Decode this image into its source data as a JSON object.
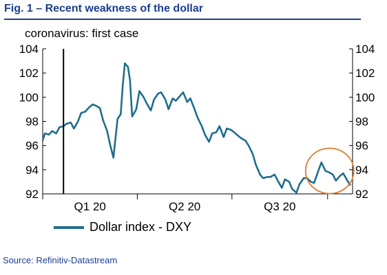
{
  "title": "Fig. 1 – Recent weakness of the dollar",
  "source": "Source: Refinitiv-Datastream",
  "colors": {
    "title": "#1b3d8f",
    "series": "#1f6d8c",
    "highlight": "#e07b2a"
  },
  "chart_data": {
    "type": "line",
    "ylim": [
      92,
      104
    ],
    "y_ticks": [
      92,
      94,
      96,
      98,
      100,
      102,
      104
    ],
    "xlim": [
      "2020-01-01",
      "2020-10-25"
    ],
    "x_labels": [
      "Q1 20",
      "Q2 20",
      "Q3 20"
    ],
    "dual_y_axis": true,
    "grid": false,
    "legend_position": "bottom-left",
    "annotation": {
      "label": "coronavirus: first case",
      "x": "2020-01-21"
    },
    "highlight_circle": {
      "x_center": "2020-10-03",
      "y_center": 93.9
    },
    "series": [
      {
        "name": "Dollar index - DXY",
        "points": [
          [
            "2020-01-01",
            96.4
          ],
          [
            "2020-01-03",
            97.0
          ],
          [
            "2020-01-07",
            96.9
          ],
          [
            "2020-01-10",
            97.2
          ],
          [
            "2020-01-14",
            97.0
          ],
          [
            "2020-01-17",
            97.5
          ],
          [
            "2020-01-21",
            97.6
          ],
          [
            "2020-01-24",
            97.8
          ],
          [
            "2020-01-28",
            97.9
          ],
          [
            "2020-01-31",
            97.4
          ],
          [
            "2020-02-04",
            98.0
          ],
          [
            "2020-02-07",
            98.7
          ],
          [
            "2020-02-11",
            98.8
          ],
          [
            "2020-02-14",
            99.1
          ],
          [
            "2020-02-18",
            99.4
          ],
          [
            "2020-02-21",
            99.3
          ],
          [
            "2020-02-25",
            99.1
          ],
          [
            "2020-02-28",
            98.1
          ],
          [
            "2020-03-03",
            97.2
          ],
          [
            "2020-03-06",
            96.0
          ],
          [
            "2020-03-09",
            95.0
          ],
          [
            "2020-03-11",
            96.6
          ],
          [
            "2020-03-13",
            98.2
          ],
          [
            "2020-03-16",
            98.6
          ],
          [
            "2020-03-18",
            101.0
          ],
          [
            "2020-03-20",
            102.8
          ],
          [
            "2020-03-23",
            102.5
          ],
          [
            "2020-03-25",
            101.4
          ],
          [
            "2020-03-27",
            98.4
          ],
          [
            "2020-03-31",
            99.0
          ],
          [
            "2020-04-03",
            100.5
          ],
          [
            "2020-04-07",
            100.0
          ],
          [
            "2020-04-10",
            99.5
          ],
          [
            "2020-04-14",
            98.9
          ],
          [
            "2020-04-17",
            99.8
          ],
          [
            "2020-04-21",
            100.3
          ],
          [
            "2020-04-24",
            100.4
          ],
          [
            "2020-04-28",
            99.8
          ],
          [
            "2020-05-01",
            99.0
          ],
          [
            "2020-05-05",
            99.9
          ],
          [
            "2020-05-08",
            99.7
          ],
          [
            "2020-05-12",
            100.1
          ],
          [
            "2020-05-15",
            100.4
          ],
          [
            "2020-05-19",
            99.6
          ],
          [
            "2020-05-22",
            99.9
          ],
          [
            "2020-05-26",
            99.0
          ],
          [
            "2020-05-29",
            98.3
          ],
          [
            "2020-06-02",
            97.6
          ],
          [
            "2020-06-05",
            96.9
          ],
          [
            "2020-06-09",
            96.3
          ],
          [
            "2020-06-12",
            97.0
          ],
          [
            "2020-06-16",
            97.1
          ],
          [
            "2020-06-19",
            97.6
          ],
          [
            "2020-06-23",
            96.7
          ],
          [
            "2020-06-26",
            97.4
          ],
          [
            "2020-06-30",
            97.3
          ],
          [
            "2020-07-03",
            97.1
          ],
          [
            "2020-07-07",
            96.8
          ],
          [
            "2020-07-10",
            96.6
          ],
          [
            "2020-07-14",
            96.4
          ],
          [
            "2020-07-17",
            96.0
          ],
          [
            "2020-07-21",
            95.3
          ],
          [
            "2020-07-24",
            94.4
          ],
          [
            "2020-07-28",
            93.6
          ],
          [
            "2020-07-31",
            93.3
          ],
          [
            "2020-08-04",
            93.4
          ],
          [
            "2020-08-07",
            93.4
          ],
          [
            "2020-08-11",
            93.6
          ],
          [
            "2020-08-14",
            93.1
          ],
          [
            "2020-08-18",
            92.5
          ],
          [
            "2020-08-21",
            93.2
          ],
          [
            "2020-08-25",
            93.0
          ],
          [
            "2020-08-28",
            92.4
          ],
          [
            "2020-09-01",
            92.1
          ],
          [
            "2020-09-04",
            92.8
          ],
          [
            "2020-09-08",
            93.3
          ],
          [
            "2020-09-11",
            93.3
          ],
          [
            "2020-09-15",
            93.0
          ],
          [
            "2020-09-18",
            92.9
          ],
          [
            "2020-09-22",
            93.9
          ],
          [
            "2020-09-25",
            94.6
          ],
          [
            "2020-09-29",
            93.9
          ],
          [
            "2020-10-02",
            93.8
          ],
          [
            "2020-10-06",
            93.6
          ],
          [
            "2020-10-09",
            93.1
          ],
          [
            "2020-10-13",
            93.5
          ],
          [
            "2020-10-16",
            93.7
          ],
          [
            "2020-10-20",
            93.1
          ],
          [
            "2020-10-23",
            92.7
          ]
        ]
      }
    ]
  }
}
